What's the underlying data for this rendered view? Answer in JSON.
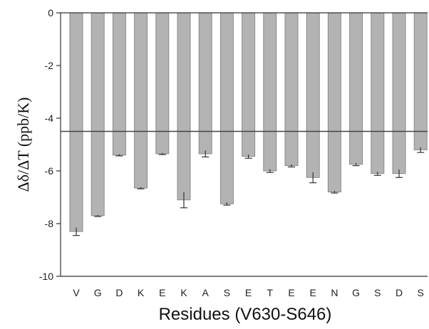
{
  "chart_data": {
    "type": "bar",
    "title": "",
    "xlabel": "Residues (V630-S646)",
    "ylabel": "Δδ/ΔT (ppb/K)",
    "ylim": [
      -10,
      0
    ],
    "yticks": [
      "0",
      "-2",
      "-4",
      "-6",
      "-8",
      "-10"
    ],
    "categories": [
      "V",
      "G",
      "D",
      "K",
      "E",
      "K",
      "A",
      "S",
      "E",
      "T",
      "E",
      "E",
      "N",
      "G",
      "S",
      "D",
      "S"
    ],
    "values": [
      -8.3,
      -7.7,
      -5.4,
      -6.65,
      -5.35,
      -7.1,
      -5.35,
      -7.25,
      -5.45,
      -6.0,
      -5.8,
      -6.25,
      -6.8,
      -5.75,
      -6.1,
      -6.1,
      -5.2
    ],
    "errors": [
      0.15,
      0.03,
      0.03,
      0.03,
      0.03,
      0.3,
      0.12,
      0.05,
      0.07,
      0.06,
      0.05,
      0.2,
      0.04,
      0.05,
      0.07,
      0.15,
      0.1
    ],
    "reference_line": -4.5,
    "grid": false,
    "legend": "none",
    "colors": {
      "bar": "#b3b3b3",
      "bar_edge": "#8a8a8a",
      "axis": "#333333"
    }
  }
}
